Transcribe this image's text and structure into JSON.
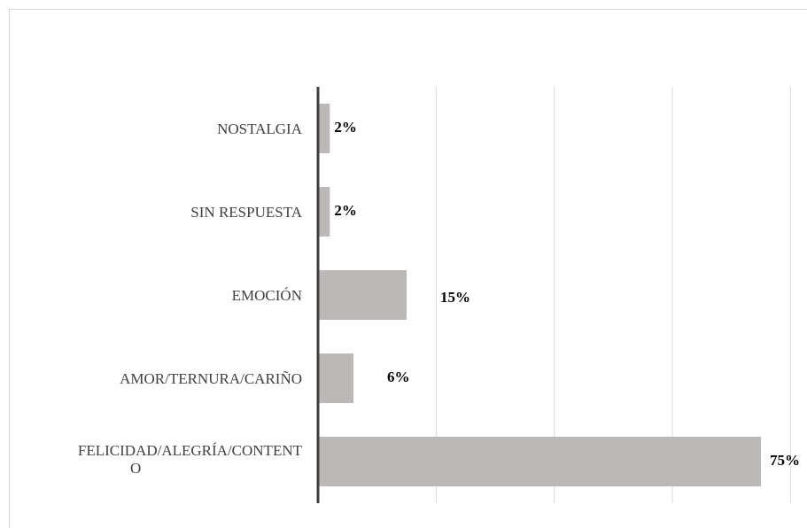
{
  "chart_data": {
    "type": "bar",
    "orientation": "horizontal",
    "categories": [
      "NOSTALGIA",
      "SIN RESPUESTA",
      "EMOCIÓN",
      "AMOR/TERNURA/CARIÑO",
      "FELICIDAD/ALEGRÍA/CONTENTO"
    ],
    "category_label_lines": [
      [
        "NOSTALGIA"
      ],
      [
        "SIN RESPUESTA"
      ],
      [
        "EMOCIÓN"
      ],
      [
        "AMOR/TERNURA/CARIÑO"
      ],
      [
        "FELICIDAD/ALEGRÍA/CONTENT",
        "O"
      ]
    ],
    "values": [
      2,
      2,
      15,
      6,
      75
    ],
    "data_labels": [
      "2%",
      "2%",
      "15%",
      "6%",
      "75%"
    ],
    "title": "",
    "xlabel": "",
    "ylabel": "",
    "xlim": [
      0,
      80
    ],
    "grid": true,
    "legend": "none",
    "bar_color": "#bcb8b8",
    "axis_color": "#404040",
    "grid_color": "#d9d9d9"
  }
}
